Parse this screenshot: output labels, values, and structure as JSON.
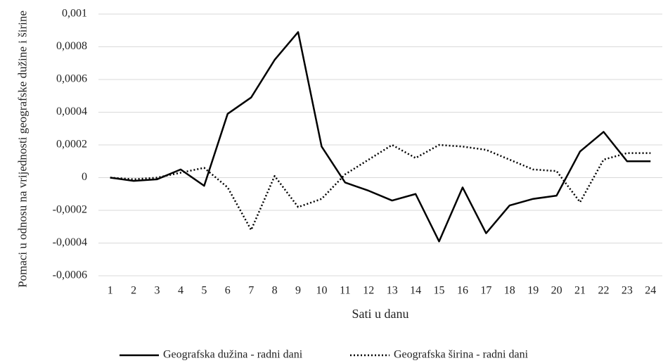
{
  "chart_data": {
    "type": "line",
    "y_label": "Pomaci u odnosu na vrijednosti geografske dužine i širine",
    "x_label": "Sati u danu",
    "categories": [
      "1",
      "2",
      "3",
      "4",
      "5",
      "6",
      "7",
      "8",
      "9",
      "10",
      "11",
      "12",
      "13",
      "14",
      "15",
      "16",
      "17",
      "18",
      "19",
      "20",
      "21",
      "22",
      "23",
      "24"
    ],
    "series": [
      {
        "name": "Geografska dužina - radni dani",
        "color": "#000000",
        "dash": "solid",
        "values": [
          0,
          -2e-05,
          -1e-05,
          5e-05,
          -5e-05,
          0.00039,
          0.00049,
          0.00072,
          0.00089,
          0.00019,
          -3e-05,
          -8e-05,
          -0.00014,
          -0.0001,
          -0.00039,
          -6e-05,
          -0.00034,
          -0.00017,
          -0.00013,
          -0.00011,
          0.00016,
          0.00028,
          0.0001,
          0.0001
        ]
      },
      {
        "name": "Geografska širina - radni dani",
        "color": "#000000",
        "dash": "dotted",
        "values": [
          0,
          -1e-05,
          0,
          3e-05,
          6e-05,
          -6e-05,
          -0.00032,
          1e-05,
          -0.00018,
          -0.00013,
          2e-05,
          0.00011,
          0.0002,
          0.00012,
          0.0002,
          0.00019,
          0.00017,
          0.00011,
          5e-05,
          4e-05,
          -0.00015,
          0.00011,
          0.00015,
          0.00015
        ]
      }
    ],
    "ylim": [
      -0.0006,
      0.001
    ],
    "yticks": [
      {
        "value": -0.0006,
        "label": "-0,0006"
      },
      {
        "value": -0.0004,
        "label": "-0,0004"
      },
      {
        "value": -0.0002,
        "label": "-0,0002"
      },
      0,
      {
        "value": 0.0002,
        "label": "0,0002"
      },
      {
        "value": 0.0004,
        "label": "0,0004"
      },
      {
        "value": 0.0006,
        "label": "0,0006"
      },
      {
        "value": 0.0008,
        "label": "0,0008"
      },
      {
        "value": 0.001,
        "label": "0,001"
      }
    ],
    "grid": true,
    "legend": "bottom"
  }
}
